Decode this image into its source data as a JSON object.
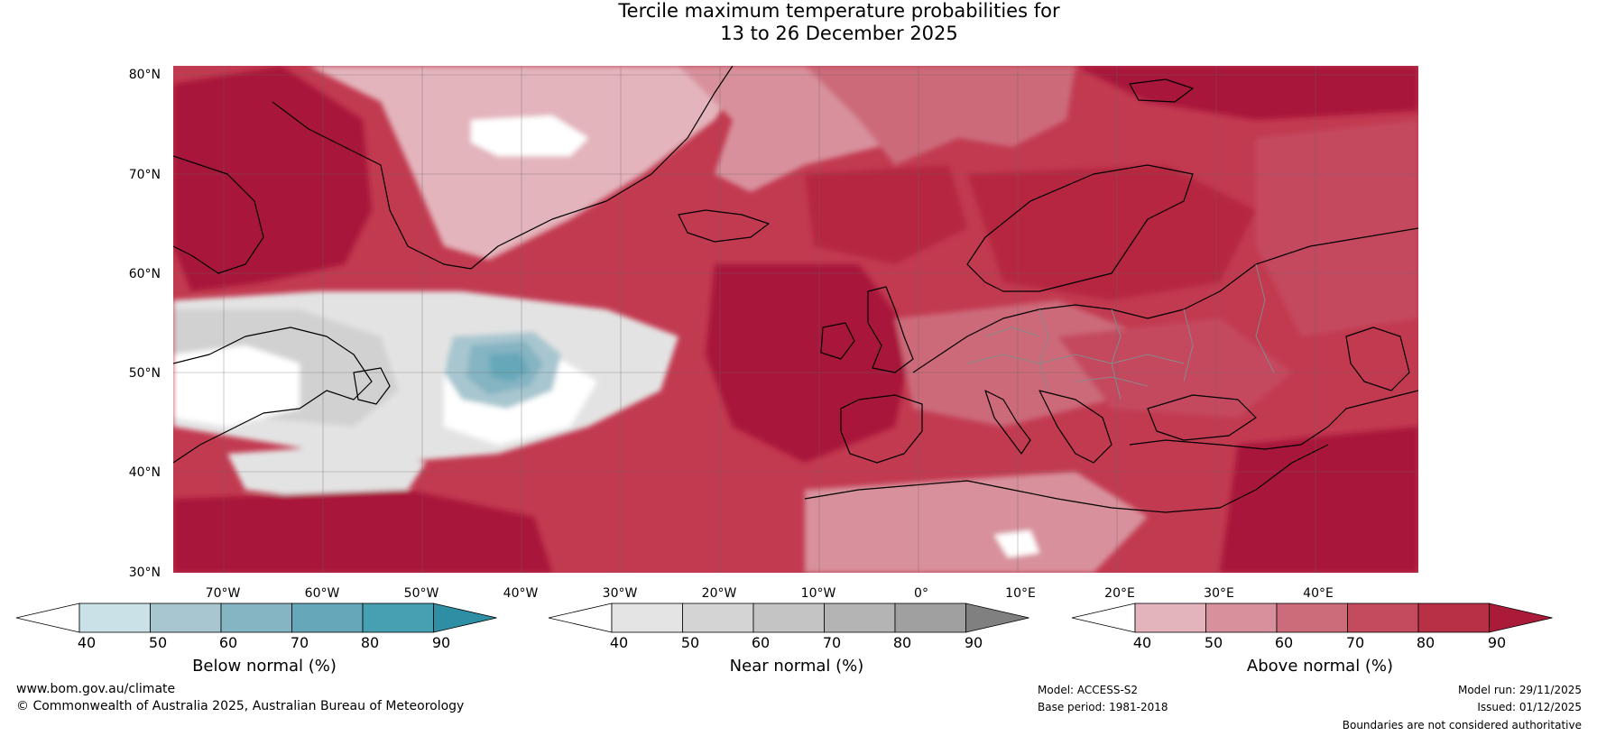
{
  "header": {
    "title_line1": "Tercile maximum temperature probabilities for",
    "title_line2": "13 to 26 December 2025"
  },
  "map": {
    "lat_labels": [
      "80°N",
      "70°N",
      "60°N",
      "50°N",
      "40°N",
      "30°N"
    ],
    "lon_labels": [
      "70°W",
      "60°W",
      "50°W",
      "40°W",
      "30°W",
      "20°W",
      "10°W",
      "0°",
      "10°E",
      "20°E",
      "30°E",
      "40°E"
    ],
    "colors": {
      "ocean_base": "#c23a50",
      "above_40_50": "#e3b4bc",
      "above_50_60": "#d8919c",
      "above_60_70": "#cc6b7a",
      "above_70_80": "#c44a5e",
      "above_80_90": "#b6283f",
      "above_90": "#a8163a",
      "near_40_50": "#e3e3e3",
      "near_50_60": "#d1d1d1",
      "below_50_60": "#a7c6cf",
      "below_60_70": "#85b4c2",
      "below_70_80": "#66a8b9",
      "white": "#ffffff"
    }
  },
  "colorbars": [
    {
      "id": "below",
      "label": "Below normal (%)",
      "ticks": [
        "40",
        "50",
        "60",
        "70",
        "80",
        "90"
      ],
      "colors": [
        "#ffffff",
        "#c9e1e7",
        "#a7c6cf",
        "#85b4c2",
        "#66a8b9",
        "#47a0b1",
        "#2e8ea3"
      ]
    },
    {
      "id": "near",
      "label": "Near normal (%)",
      "ticks": [
        "40",
        "50",
        "60",
        "70",
        "80",
        "90"
      ],
      "colors": [
        "#ffffff",
        "#e4e4e4",
        "#d4d4d4",
        "#c4c4c4",
        "#b4b4b4",
        "#a0a0a0",
        "#808080"
      ]
    },
    {
      "id": "above",
      "label": "Above normal (%)",
      "ticks": [
        "40",
        "50",
        "60",
        "70",
        "80",
        "90"
      ],
      "colors": [
        "#ffffff",
        "#e3b4bc",
        "#d8919c",
        "#cc6b7a",
        "#c44a5e",
        "#b83045",
        "#ac1a3a"
      ]
    }
  ],
  "footer": {
    "website": "www.bom.gov.au/climate",
    "copyright": "© Commonwealth of Australia 2025, Australian Bureau of Meteorology",
    "model": "Model: ACCESS-S2",
    "base_period": "Base period: 1981-2018",
    "model_run": "Model run: 29/11/2025",
    "issued": "Issued: 01/12/2025",
    "disclaimer": "Boundaries are not considered authoritative"
  }
}
